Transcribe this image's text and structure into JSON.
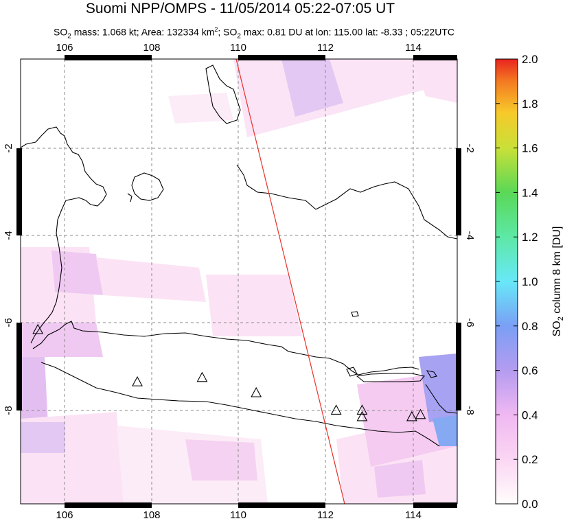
{
  "title": "Suomi NPP/OMPS - 11/05/2014 05:22-07:05 UT",
  "subtitle": {
    "part1": "SO",
    "sub1": "2",
    "part2": " mass: 1.068 kt; Area: 132334 km",
    "sup1": "2",
    "part3": "; SO",
    "sub2": "2",
    "part4": " max: 0.81 DU at lon: 115.00 lat: -8.33 ; 05:22UTC"
  },
  "map": {
    "lon_range": [
      105.0,
      115.1
    ],
    "lat_range": [
      -10.1,
      0.1
    ],
    "lon_ticks": [
      "106",
      "108",
      "110",
      "112",
      "114"
    ],
    "lat_ticks": [
      "-2",
      "-4",
      "-6",
      "-8"
    ],
    "volcanoes": [
      {
        "lon": 105.4,
        "lat": -6.1
      },
      {
        "lon": 107.7,
        "lat": -7.3
      },
      {
        "lon": 109.2,
        "lat": -7.2
      },
      {
        "lon": 110.45,
        "lat": -7.55
      },
      {
        "lon": 112.3,
        "lat": -7.95
      },
      {
        "lon": 112.9,
        "lat": -7.95
      },
      {
        "lon": 112.9,
        "lat": -8.1
      },
      {
        "lon": 114.05,
        "lat": -8.1
      },
      {
        "lon": 114.25,
        "lat": -8.05
      }
    ],
    "track_color": "#e8312a"
  },
  "colorbar": {
    "ticks": [
      "2.0",
      "1.8",
      "1.6",
      "1.4",
      "1.2",
      "1.0",
      "0.8",
      "0.6",
      "0.4",
      "0.2",
      "0.0"
    ],
    "label_main": "SO",
    "label_sub": "2",
    "label_rest": " column 8 km [DU]",
    "range": [
      0.0,
      2.0
    ]
  }
}
